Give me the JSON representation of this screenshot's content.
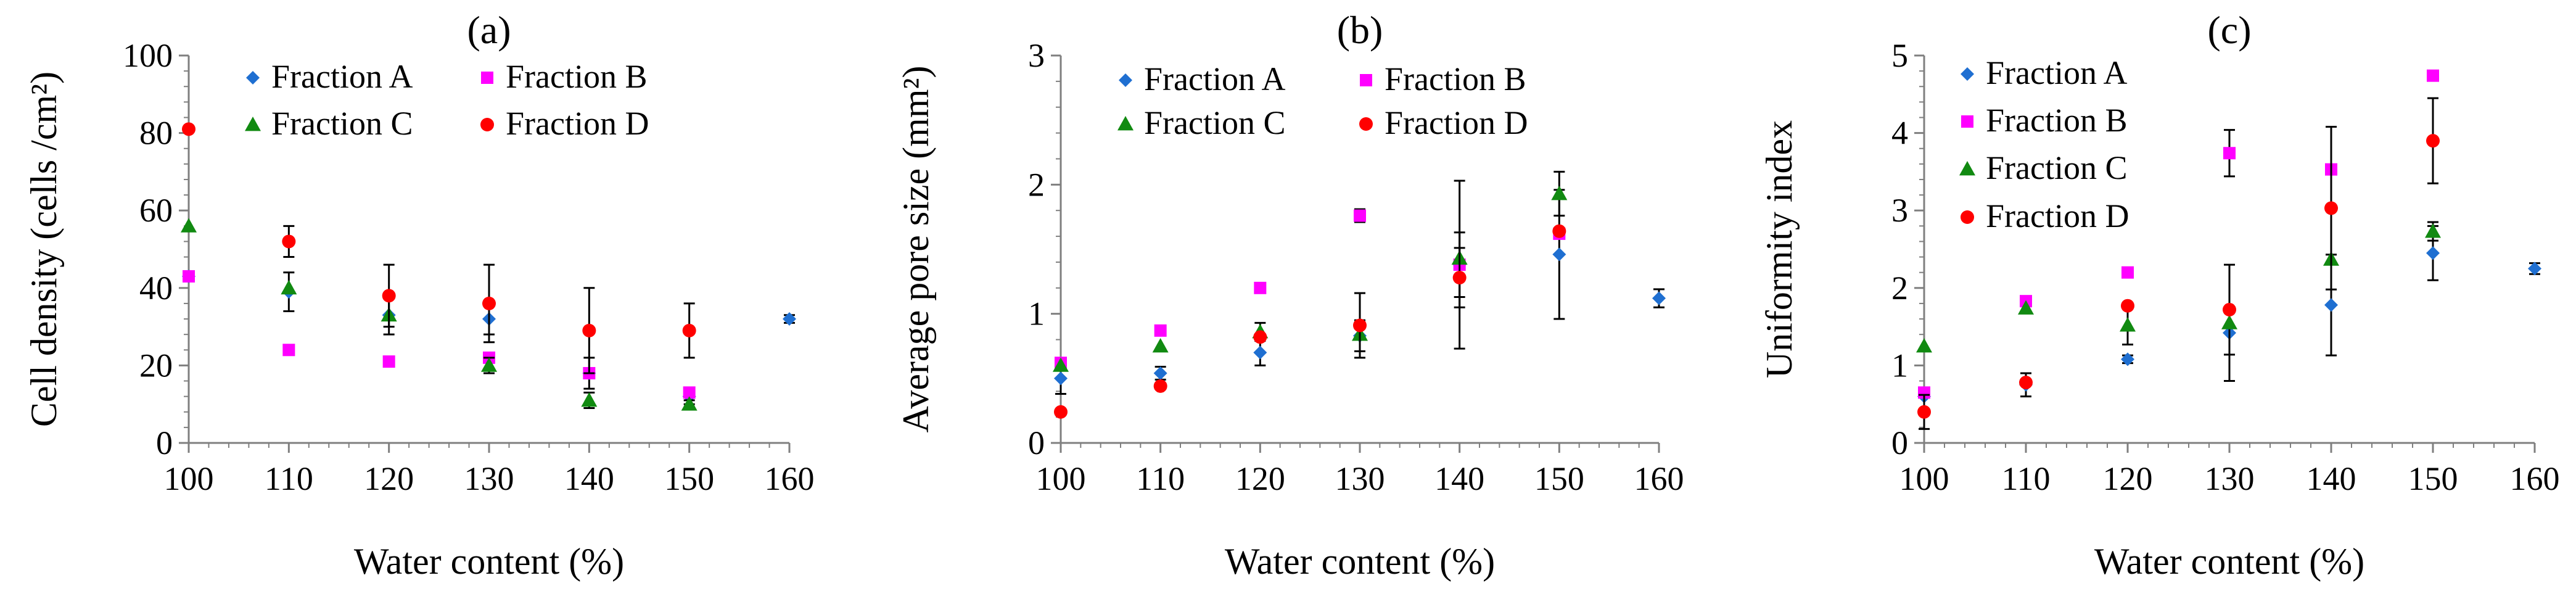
{
  "colors": {
    "fraction_a": "#1f6fd1",
    "fraction_b": "#ff00ff",
    "fraction_c": "#118a11",
    "fraction_d": "#ff0000",
    "axis": "#7f7f7f",
    "errorbar": "#000000"
  },
  "chart_data": [
    {
      "type": "scatter",
      "title": "(a)",
      "xlabel": "Water content (%)",
      "ylabel": "Cell density (cells /cm²)",
      "xlim": [
        100,
        160
      ],
      "ylim": [
        0,
        100
      ],
      "xticks": [
        100,
        110,
        120,
        130,
        140,
        150,
        160
      ],
      "xtick_labels": [
        "100",
        "110",
        "120",
        "130",
        "140",
        "150",
        "160"
      ],
      "yticks": [
        0,
        20,
        40,
        60,
        80,
        100
      ],
      "ytick_labels": [
        "0",
        "20",
        "40",
        "60",
        "80",
        "100"
      ],
      "legend_location": "top",
      "series": [
        {
          "name": "Fraction A",
          "marker": "diamond",
          "x": [
            100,
            110,
            120,
            130,
            140,
            150,
            160
          ],
          "y": [
            43,
            39,
            33,
            32,
            18,
            12,
            32
          ],
          "err": [
            0,
            5,
            5,
            4,
            4,
            2,
            1
          ]
        },
        {
          "name": "Fraction B",
          "marker": "square",
          "x": [
            100,
            110,
            120,
            130,
            140,
            150
          ],
          "y": [
            43,
            24,
            21,
            22,
            18,
            13
          ],
          "err": [
            0,
            0,
            0,
            0,
            0,
            0
          ]
        },
        {
          "name": "Fraction C",
          "marker": "triangle",
          "x": [
            100,
            110,
            120,
            130,
            140,
            150
          ],
          "y": [
            56,
            40,
            33,
            20,
            11,
            10
          ],
          "err": [
            0,
            0,
            0,
            2,
            2,
            1
          ]
        },
        {
          "name": "Fraction D",
          "marker": "circle",
          "x": [
            100,
            110,
            120,
            130,
            140,
            150
          ],
          "y": [
            81,
            52,
            38,
            36,
            29,
            29
          ],
          "err": [
            0,
            4,
            8,
            10,
            11,
            7
          ]
        }
      ],
      "legend_order": [
        0,
        1,
        2,
        3
      ]
    },
    {
      "type": "scatter",
      "title": "(b)",
      "xlabel": "Water content (%)",
      "ylabel": "Average pore size (mm²)",
      "xlim": [
        100,
        160
      ],
      "ylim": [
        0,
        3
      ],
      "xticks": [
        100,
        110,
        120,
        130,
        140,
        150,
        160
      ],
      "xtick_labels": [
        "100",
        "110",
        "120",
        "130",
        "140",
        "150",
        "160"
      ],
      "yticks": [
        0,
        1,
        2,
        3
      ],
      "ytick_labels": [
        "0",
        "1",
        "2",
        "3"
      ],
      "legend_location": "top",
      "series": [
        {
          "name": "Fraction A",
          "marker": "diamond",
          "x": [
            100,
            110,
            120,
            130,
            140,
            150,
            160
          ],
          "y": [
            0.5,
            0.54,
            0.7,
            0.83,
            1.38,
            1.46,
            1.12
          ],
          "err": [
            0.12,
            0.05,
            0.1,
            0.12,
            0.25,
            0.5,
            0.07
          ]
        },
        {
          "name": "Fraction B",
          "marker": "square",
          "x": [
            100,
            110,
            120,
            130,
            140,
            150
          ],
          "y": [
            0.62,
            0.87,
            1.2,
            1.76,
            1.38,
            1.62
          ],
          "err": [
            0,
            0,
            0,
            0.05,
            0.65,
            0
          ]
        },
        {
          "name": "Fraction C",
          "marker": "triangle",
          "x": [
            100,
            110,
            120,
            130,
            140,
            150
          ],
          "y": [
            0.6,
            0.75,
            0.86,
            0.84,
            1.43,
            1.93
          ],
          "err": [
            0,
            0,
            0.07,
            0,
            0,
            0.17
          ]
        },
        {
          "name": "Fraction D",
          "marker": "circle",
          "x": [
            100,
            110,
            120,
            130,
            140,
            150
          ],
          "y": [
            0.24,
            0.44,
            0.82,
            0.91,
            1.28,
            1.64
          ],
          "err": [
            0,
            0,
            0,
            0.25,
            0.23,
            0
          ]
        }
      ],
      "legend_order": [
        0,
        1,
        2,
        3
      ]
    },
    {
      "type": "scatter",
      "title": "(c)",
      "xlabel": "Water content (%)",
      "ylabel": "Uniformity index",
      "xlim": [
        100,
        160
      ],
      "ylim": [
        0,
        5
      ],
      "xticks": [
        100,
        110,
        120,
        130,
        140,
        150,
        160
      ],
      "xtick_labels": [
        "100",
        "110",
        "120",
        "130",
        "140",
        "150",
        "160"
      ],
      "yticks": [
        0,
        1,
        2,
        3,
        4,
        5
      ],
      "ytick_labels": [
        "0",
        "1",
        "2",
        "3",
        "4",
        "5"
      ],
      "legend_location": "top-left",
      "series": [
        {
          "name": "Fraction A",
          "marker": "diamond",
          "x": [
            100,
            110,
            120,
            130,
            140,
            150,
            160
          ],
          "y": [
            0.6,
            0.75,
            1.08,
            1.42,
            1.78,
            2.45,
            2.25
          ],
          "err": [
            0,
            0.15,
            0.05,
            0.28,
            0.65,
            0.35,
            0.07
          ]
        },
        {
          "name": "Fraction B",
          "marker": "square",
          "x": [
            100,
            110,
            120,
            130,
            140,
            150
          ],
          "y": [
            0.65,
            1.83,
            2.2,
            3.74,
            3.53,
            4.74
          ],
          "err": [
            0,
            0,
            0,
            0.3,
            0,
            0
          ]
        },
        {
          "name": "Fraction C",
          "marker": "triangle",
          "x": [
            100,
            110,
            120,
            130,
            140,
            150
          ],
          "y": [
            1.25,
            1.74,
            1.52,
            1.55,
            2.37,
            2.73
          ],
          "err": [
            0,
            0,
            0.25,
            0.75,
            0,
            0.12
          ]
        },
        {
          "name": "Fraction D",
          "marker": "circle",
          "x": [
            100,
            110,
            120,
            130,
            140,
            150
          ],
          "y": [
            0.4,
            0.78,
            1.77,
            1.72,
            3.03,
            3.9
          ],
          "err": [
            0.22,
            0,
            0,
            0,
            1.05,
            0.55
          ]
        }
      ],
      "legend_order": [
        0,
        1,
        2,
        3
      ]
    }
  ]
}
